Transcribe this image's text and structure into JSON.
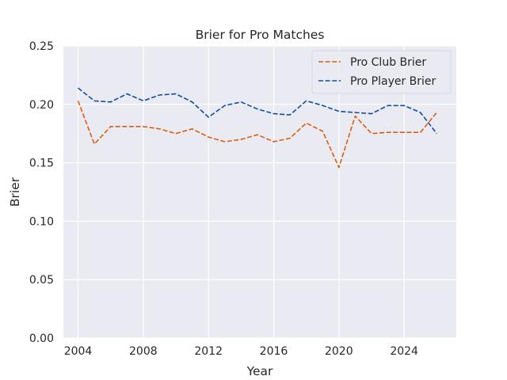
{
  "chart_data": {
    "type": "line",
    "title": "Brier for Pro Matches",
    "xlabel": "Year",
    "ylabel": "Brier",
    "xlim": [
      2003.1,
      2027.2
    ],
    "ylim": [
      0.0,
      0.25
    ],
    "x_ticks": [
      2004,
      2008,
      2012,
      2016,
      2020,
      2024
    ],
    "y_ticks": [
      0.0,
      0.05,
      0.1,
      0.15,
      0.2,
      0.25
    ],
    "x_tick_labels": [
      "2004",
      "2008",
      "2012",
      "2016",
      "2020",
      "2024"
    ],
    "y_tick_labels": [
      "0.00",
      "0.05",
      "0.10",
      "0.15",
      "0.20",
      "0.25"
    ],
    "grid": true,
    "legend_position": "top-right",
    "x": [
      2004,
      2005,
      2006,
      2007,
      2008,
      2009,
      2010,
      2011,
      2012,
      2013,
      2014,
      2015,
      2016,
      2017,
      2018,
      2019,
      2020,
      2021,
      2022,
      2023,
      2024,
      2025,
      2026
    ],
    "series": [
      {
        "name": "Pro Club Brier",
        "color": "#d95f0e",
        "line_style": "dashed",
        "values": [
          0.203,
          0.166,
          0.181,
          0.181,
          0.181,
          0.179,
          0.175,
          0.179,
          0.172,
          0.168,
          0.17,
          0.174,
          0.168,
          0.171,
          0.184,
          0.177,
          0.146,
          0.19,
          0.175,
          0.176,
          0.176,
          0.176,
          0.193
        ]
      },
      {
        "name": "Pro Player Brier",
        "color": "#0b4fa0",
        "line_style": "dashed",
        "values": [
          0.214,
          0.203,
          0.202,
          0.209,
          0.203,
          0.208,
          0.209,
          0.202,
          0.189,
          0.199,
          0.202,
          0.196,
          0.192,
          0.191,
          0.203,
          0.199,
          0.194,
          0.193,
          0.192,
          0.199,
          0.199,
          0.193,
          0.175
        ]
      }
    ]
  },
  "style": {
    "plot_background": "#eaeaf2",
    "grid_color": "#ffffff",
    "text_color": "#262626"
  }
}
